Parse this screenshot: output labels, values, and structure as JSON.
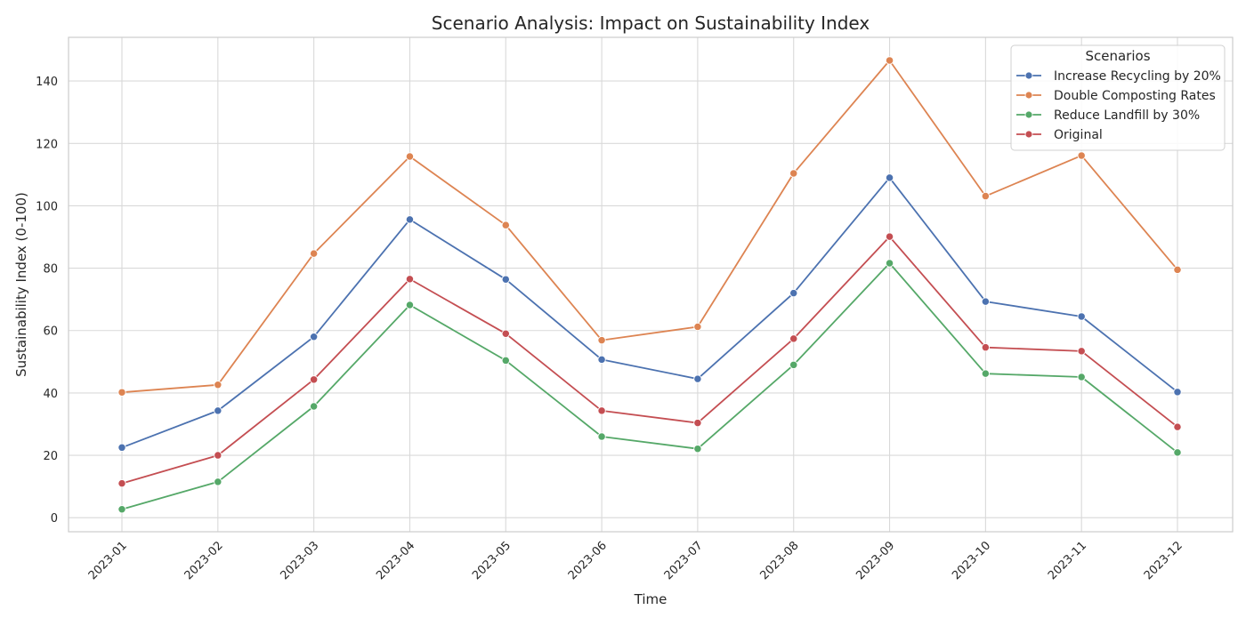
{
  "chart_data": {
    "type": "line",
    "title": "Scenario Analysis: Impact on Sustainability Index",
    "xlabel": "Time",
    "ylabel": "Sustainability Index (0-100)",
    "categories": [
      "2023-01",
      "2023-02",
      "2023-03",
      "2023-04",
      "2023-05",
      "2023-06",
      "2023-07",
      "2023-08",
      "2023-09",
      "2023-10",
      "2023-11",
      "2023-12"
    ],
    "ylim": [
      -4.5,
      154
    ],
    "yticks": [
      0,
      20,
      40,
      60,
      80,
      100,
      120,
      140
    ],
    "grid": true,
    "legend": {
      "title": "Scenarios",
      "placement": "top-right"
    },
    "series": [
      {
        "name": "Increase Recycling by 20%",
        "color": "#4c72b0",
        "values": [
          22.5,
          34.3,
          58.0,
          95.6,
          76.4,
          50.7,
          44.5,
          72.0,
          109.0,
          69.3,
          64.5,
          40.3
        ]
      },
      {
        "name": "Double Composting Rates",
        "color": "#dd8452",
        "values": [
          40.2,
          42.6,
          84.7,
          115.8,
          93.8,
          56.9,
          61.2,
          110.4,
          146.6,
          103.1,
          116.1,
          79.5
        ]
      },
      {
        "name": "Reduce Landfill by 30%",
        "color": "#55a868",
        "values": [
          2.7,
          11.5,
          35.7,
          68.2,
          50.4,
          26.0,
          22.1,
          49.0,
          81.6,
          46.2,
          45.1,
          20.9
        ]
      },
      {
        "name": "Original",
        "color": "#c44e52",
        "values": [
          11.0,
          20.0,
          44.3,
          76.5,
          59.0,
          34.3,
          30.4,
          57.4,
          90.1,
          54.6,
          53.4,
          29.1
        ]
      }
    ]
  }
}
